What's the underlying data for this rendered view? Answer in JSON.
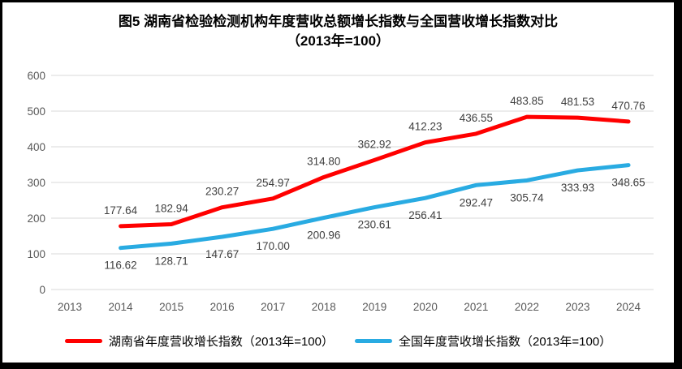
{
  "title": {
    "line1": "图5 湖南省检验检测机构年度营收总额增长指数与全国营收增长指数对比",
    "line2": "（2013年=100）"
  },
  "chart_data": {
    "type": "line",
    "x": [
      "2013",
      "2014",
      "2015",
      "2016",
      "2017",
      "2018",
      "2019",
      "2020",
      "2021",
      "2022",
      "2023",
      "2024"
    ],
    "series": [
      {
        "name": "湖南省年度营收增长指数（2013年=100）",
        "color": "#FF0000",
        "label_position": "above",
        "values": [
          null,
          177.64,
          182.94,
          230.27,
          254.97,
          314.8,
          362.92,
          412.23,
          436.55,
          483.85,
          481.53,
          470.76
        ]
      },
      {
        "name": "全国年度营收增长指数（2013年=100）",
        "color": "#29ABE2",
        "label_position": "below",
        "values": [
          null,
          116.62,
          128.71,
          147.67,
          170.0,
          200.96,
          230.61,
          256.41,
          292.47,
          305.74,
          333.93,
          348.65
        ]
      }
    ],
    "ylim": [
      0,
      600
    ],
    "ytick_step": 100,
    "grid": true,
    "legend_position": "bottom"
  },
  "colors": {
    "grid": "#D9D9D9",
    "axis_text": "#595959",
    "data_label_text": "#404040",
    "frame": "#000000"
  }
}
